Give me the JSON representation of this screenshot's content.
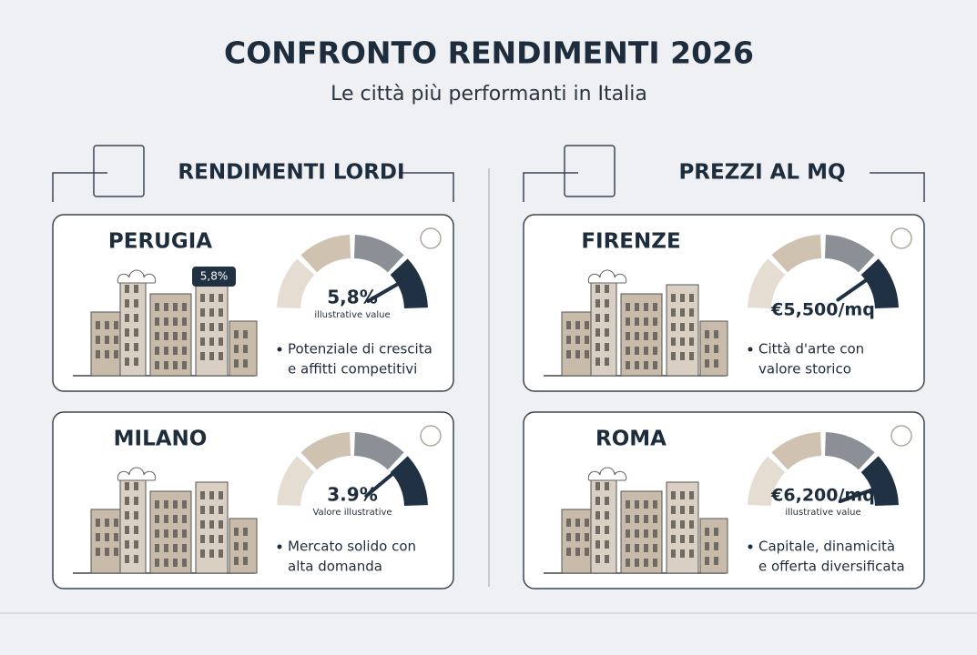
{
  "header": {
    "title": "CONFRONTO RENDIMENTI 2026",
    "subtitle": "Le città più performanti in Italia"
  },
  "sections": [
    {
      "title": "RENDIMENTI LORDI",
      "cards": [
        {
          "city": "PERUGIA",
          "tag": "5,8%",
          "value": "5,8%",
          "sub": "illustrative value",
          "lines": [
            "Potenziale di crescita",
            "e affitti competitivi"
          ]
        },
        {
          "city": "MILANO",
          "value": "3.9%",
          "sub": "Valore illustrative",
          "lines": [
            "Mercato solido con",
            "alta domanda"
          ]
        }
      ]
    },
    {
      "title": "PREZZI AL MQ",
      "cards": [
        {
          "city": "FIRENZE",
          "value": "€5,500/mq",
          "lines": [
            "Città d'arte con",
            "valore storico"
          ]
        },
        {
          "city": "ROMA",
          "value": "€6,200/mq",
          "sub": "illustrative value",
          "lines": [
            "Capitale, dinamicità",
            "e offerta diversificata"
          ]
        }
      ]
    }
  ]
}
